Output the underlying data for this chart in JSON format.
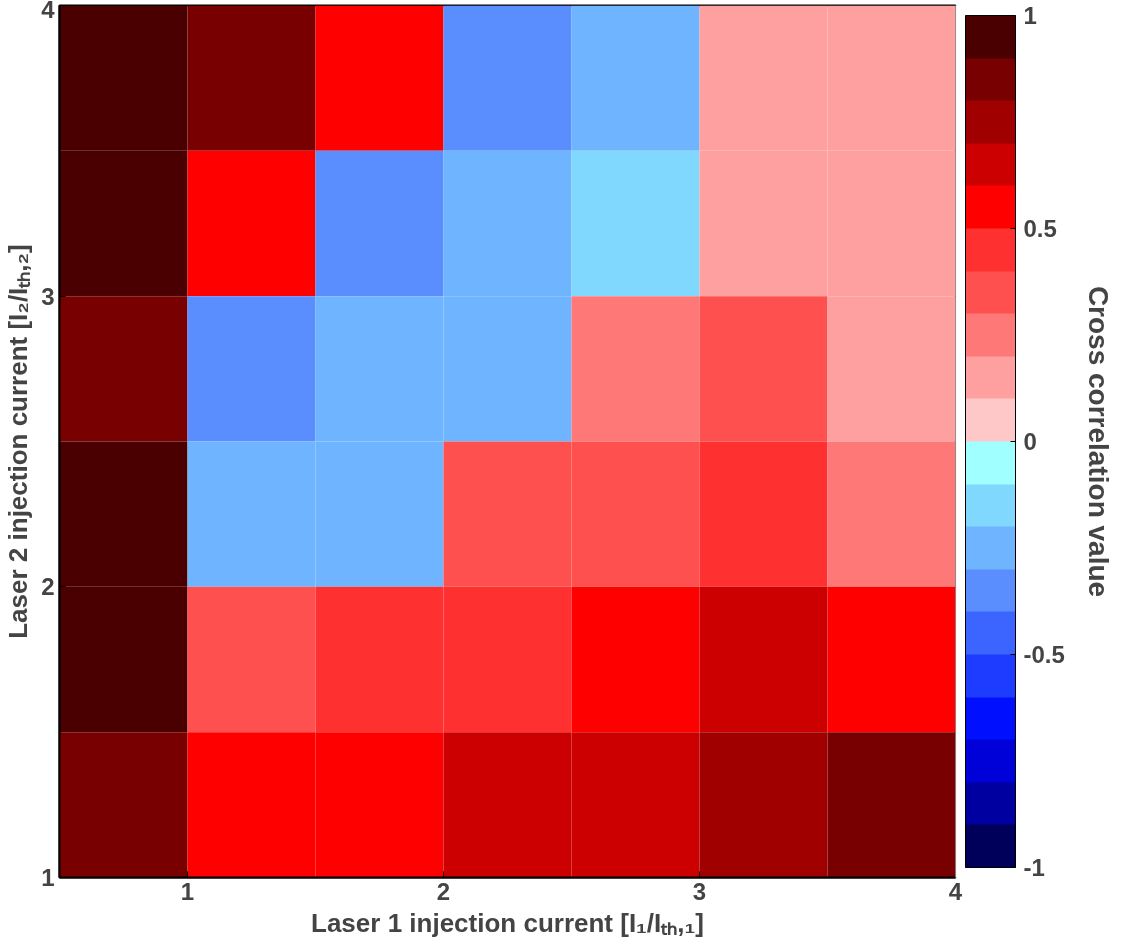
{
  "chart_data": {
    "type": "heatmap",
    "xlabel": "Laser 1 injection current [I₁/Iₜₕ,₁]",
    "ylabel": "Laser 2 injection current [I₂/Iₜₕ,₂]",
    "clabel": "Cross correlation value",
    "x": [
      0.75,
      1.25,
      1.75,
      2.25,
      2.75,
      3.25,
      3.75
    ],
    "y": [
      3.75,
      3.25,
      2.75,
      2.25,
      1.75,
      1.25
    ],
    "cells": [
      [
        0.95,
        0.85,
        0.55,
        -0.35,
        -0.25,
        0.15,
        0.15
      ],
      [
        0.95,
        0.55,
        -0.35,
        -0.25,
        -0.15,
        0.15,
        0.15
      ],
      [
        0.85,
        -0.35,
        -0.25,
        -0.25,
        0.25,
        0.35,
        0.15
      ],
      [
        0.95,
        -0.25,
        -0.25,
        0.35,
        0.35,
        0.45,
        0.25
      ],
      [
        0.95,
        0.35,
        0.45,
        0.45,
        0.55,
        0.65,
        0.55
      ],
      [
        0.85,
        0.55,
        0.55,
        0.65,
        0.65,
        0.75,
        0.85
      ]
    ],
    "xlim": [
      0.5,
      4
    ],
    "ylim": [
      1,
      4
    ],
    "xticks": [
      1,
      2,
      3,
      4
    ],
    "yticks": [
      1,
      2,
      3,
      4
    ],
    "clim": [
      -1,
      1
    ],
    "cticks": [
      -1,
      -0.5,
      0,
      0.5,
      1
    ],
    "grid": false
  }
}
